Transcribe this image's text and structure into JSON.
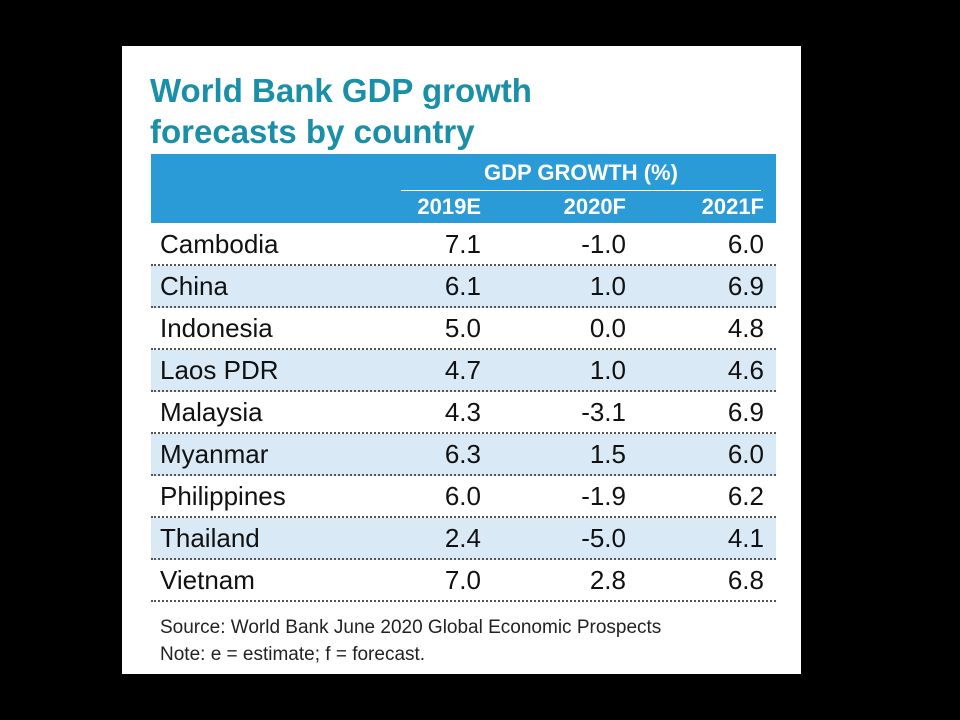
{
  "chart_data": {
    "type": "table",
    "title": "World Bank GDP growth forecasts by country",
    "group_header": "GDP GROWTH (%)",
    "columns": [
      "2019E",
      "2020F",
      "2021F"
    ],
    "rows": [
      {
        "country": "Cambodia",
        "values": [
          "7.1",
          "-1.0",
          "6.0"
        ]
      },
      {
        "country": "China",
        "values": [
          "6.1",
          "1.0",
          "6.9"
        ]
      },
      {
        "country": "Indonesia",
        "values": [
          "5.0",
          "0.0",
          "4.8"
        ]
      },
      {
        "country": "Laos PDR",
        "values": [
          "4.7",
          "1.0",
          "4.6"
        ]
      },
      {
        "country": "Malaysia",
        "values": [
          "4.3",
          "-3.1",
          "6.9"
        ]
      },
      {
        "country": "Myanmar",
        "values": [
          "6.3",
          "1.5",
          "6.0"
        ]
      },
      {
        "country": "Philippines",
        "values": [
          "6.0",
          "-1.9",
          "6.2"
        ]
      },
      {
        "country": "Thailand",
        "values": [
          "2.4",
          "-5.0",
          "4.1"
        ]
      },
      {
        "country": "Vietnam",
        "values": [
          "7.0",
          "2.8",
          "6.8"
        ]
      }
    ],
    "source": "Source: World Bank June 2020 Global Economic Prospects",
    "note": "Note: e = estimate; f = forecast."
  },
  "colors": {
    "title": "#1a8fa8",
    "header_bg": "#2a9bd6",
    "alt_row_bg": "#d9e9f5"
  }
}
